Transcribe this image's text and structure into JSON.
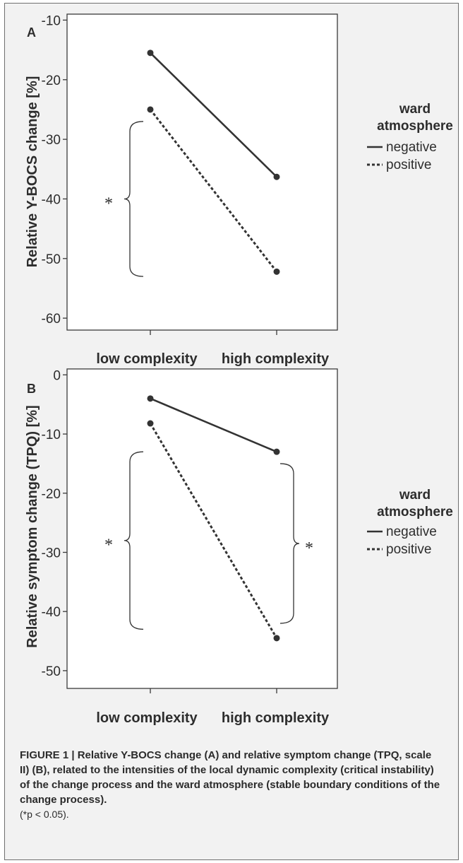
{
  "chart_data": [
    {
      "panel_label": "A",
      "type": "line",
      "categories": [
        "low complexity",
        "high complexity"
      ],
      "ylabel": "Relative Y-BOCS change [%]",
      "xlabel": "",
      "ylim": [
        -62,
        -9
      ],
      "yticks": [
        "-10",
        "-20",
        "-30",
        "-40",
        "-50",
        "-60"
      ],
      "ytick_values": [
        -10,
        -20,
        -30,
        -40,
        -50,
        -60
      ],
      "legend": {
        "title": "ward atmosphere",
        "placement": "right"
      },
      "series": [
        {
          "name": "negative",
          "style": "solid",
          "values": [
            -15.5,
            -36.3
          ]
        },
        {
          "name": "positive",
          "style": "dotted",
          "values": [
            -25.0,
            -52.2
          ]
        }
      ],
      "annotations": [
        {
          "text": "*",
          "side": "left",
          "category": "low complexity",
          "y_from": -27,
          "y_to": -53
        }
      ]
    },
    {
      "panel_label": "B",
      "type": "line",
      "categories": [
        "low complexity",
        "high complexity"
      ],
      "ylabel": "Relative symptom change (TPQ) [%]",
      "xlabel": "",
      "ylim": [
        -53,
        1
      ],
      "yticks": [
        "0",
        "-10",
        "-20",
        "-30",
        "-40",
        "-50"
      ],
      "ytick_values": [
        0,
        -10,
        -20,
        -30,
        -40,
        -50
      ],
      "legend": {
        "title": "ward atmosphere",
        "placement": "right"
      },
      "series": [
        {
          "name": "negative",
          "style": "solid",
          "values": [
            -4.0,
            -13.0
          ]
        },
        {
          "name": "positive",
          "style": "dotted",
          "values": [
            -8.2,
            -44.5
          ]
        }
      ],
      "annotations": [
        {
          "text": "*",
          "side": "left",
          "category": "low complexity",
          "y_from": -13,
          "y_to": -43
        },
        {
          "text": "*",
          "side": "right",
          "category": "high complexity",
          "y_from": -15,
          "y_to": -42
        }
      ]
    }
  ],
  "caption": {
    "bold": "FIGURE 1 | Relative Y-BOCS change (A) and relative symptom change (TPQ, scale II) (B), related to the intensities of the local dynamic complexity (critical instability) of the change process and the ward atmosphere (stable boundary conditions of the change process).",
    "note": "(*p < 0.05)."
  },
  "colors": {
    "line": "#333333",
    "axis": "#3a3a3a",
    "background": "#f2f2f2",
    "border": "#6f6f6f"
  }
}
